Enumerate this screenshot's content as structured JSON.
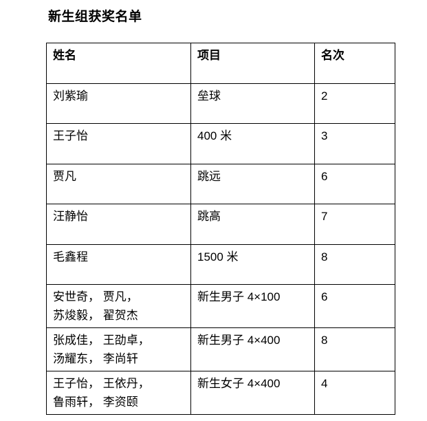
{
  "page": {
    "title": "新生组获奖名单",
    "background_color": "#ffffff",
    "text_color": "#000000",
    "border_color": "#000000"
  },
  "table": {
    "columns": [
      {
        "key": "name",
        "label": "姓名"
      },
      {
        "key": "event",
        "label": "项目"
      },
      {
        "key": "rank",
        "label": "名次"
      }
    ],
    "rows": [
      {
        "name": "刘紫瑜",
        "event": "垒球",
        "rank": "2"
      },
      {
        "name": "王子怡",
        "event": "400 米",
        "rank": "3"
      },
      {
        "name": "贾凡",
        "event": "跳远",
        "rank": "6"
      },
      {
        "name": "汪静怡",
        "event": "跳高",
        "rank": "7"
      },
      {
        "name": "毛鑫程",
        "event": "1500 米",
        "rank": "8"
      },
      {
        "name": [
          "安世奇， 贾凡，",
          "苏焌毅， 翟贺杰"
        ],
        "event": "新生男子 4×100",
        "rank": "6"
      },
      {
        "name": [
          "张成佳， 王劭卓，",
          "汤耀东， 李尚轩"
        ],
        "event": "新生男子 4×400",
        "rank": "8"
      },
      {
        "name": [
          "王子怡， 王依丹，",
          "鲁雨轩， 李资颐"
        ],
        "event": "新生女子 4×400",
        "rank": "4"
      }
    ]
  }
}
